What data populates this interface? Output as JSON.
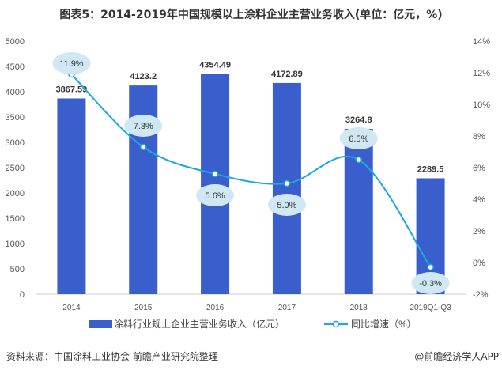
{
  "chart_data": {
    "type": "bar+line",
    "title": "图表5：2014-2019年中国规模以上涂料企业主营业务收入(单位：亿元，%)",
    "categories": [
      "2014",
      "2015",
      "2016",
      "2017",
      "2018",
      "2019Q1-Q3"
    ],
    "series": [
      {
        "name": "涂料行业规上企业主营业务收入（亿元）",
        "type": "bar",
        "axis": "left",
        "color": "#3a5fcd",
        "values": [
          3867.59,
          4123.2,
          4354.49,
          4172.89,
          3264.8,
          2289.5
        ],
        "labels": [
          "3867.59",
          "4123.2",
          "4354.49",
          "4172.89",
          "3264.8",
          "2289.5"
        ]
      },
      {
        "name": "同比增速（%）",
        "type": "line",
        "axis": "right",
        "color": "#1ea7e0",
        "values": [
          11.9,
          7.3,
          5.6,
          5.0,
          6.5,
          -0.3
        ],
        "labels": [
          "11.9%",
          "7.3%",
          "5.6%",
          "5.0%",
          "6.5%",
          "-0.3%"
        ]
      }
    ],
    "yleft": {
      "min": 0,
      "max": 5000,
      "step": 500,
      "ticks": [
        "0",
        "500",
        "1000",
        "1500",
        "2000",
        "2500",
        "3000",
        "3500",
        "4000",
        "4500",
        "5000"
      ]
    },
    "yright": {
      "min": -2,
      "max": 14,
      "step": 2,
      "ticks": [
        "-2%",
        "0%",
        "2%",
        "4%",
        "6%",
        "8%",
        "10%",
        "12%",
        "14%"
      ]
    },
    "legend": "bottom"
  },
  "source": "资料来源：中国涂料工业协会 前瞻产业研究院整理",
  "credit": "@前瞻经济学人APP"
}
